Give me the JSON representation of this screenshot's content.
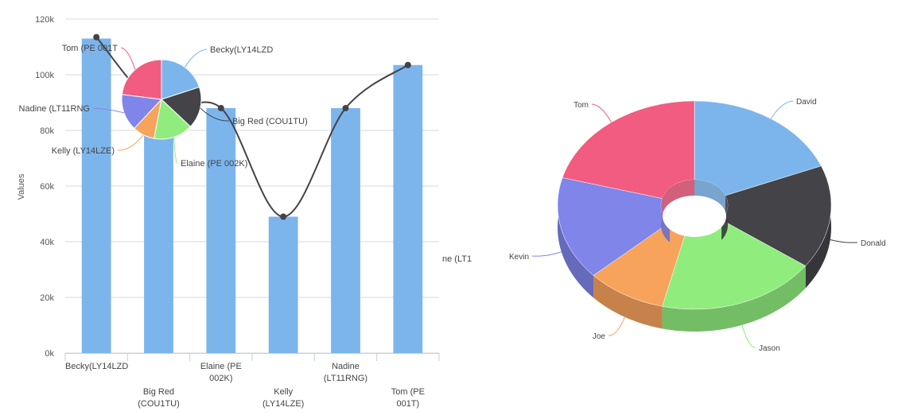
{
  "chart_data": [
    {
      "type": "bar",
      "ylabel": "Values",
      "ylim": [
        0,
        120000
      ],
      "y_ticks": [
        "0k",
        "20k",
        "40k",
        "60k",
        "80k",
        "100k",
        "120k"
      ],
      "categories": [
        "Becky(LY14LZD",
        "Big Red (COU1TU)",
        "Elaine (PE 002K)",
        "Kelly (LY14LZE)",
        "Nadine (LT11RNG)",
        "Tom (PE 001T)"
      ],
      "category_lines": [
        [
          "Becky(LY14LZD"
        ],
        [
          "Big Red",
          "(COU1TU)"
        ],
        [
          "Elaine (PE",
          "002K)"
        ],
        [
          "Kelly",
          "(LY14LZE)"
        ],
        [
          "Nadine",
          "(LT11RNG)"
        ],
        [
          "Tom (PE",
          "001T)"
        ]
      ],
      "series": [
        {
          "type": "bar",
          "color": "#7cb5ec",
          "values": [
            113000,
            79000,
            88000,
            49000,
            88000,
            103500
          ]
        },
        {
          "type": "spline",
          "color": "#434348",
          "values": [
            113500,
            88000,
            88000,
            49000,
            88000,
            103500
          ]
        }
      ],
      "grid": true,
      "clipped_label": "ne (LT1"
    },
    {
      "type": "pie",
      "overlay": "inset",
      "labels": [
        "Becky(LY14LZD",
        "Big Red (COU1TU)",
        "Elaine (PE 002K)",
        "Kelly (LY14LZE)",
        "Nadine (LT11RNG)",
        "Tom (PE 001T)"
      ],
      "display_labels": [
        "Becky(LY14LZD",
        "Big Red (COU1TU)",
        "Elaine (PE 002K)",
        "Kelly (LY14LZE)",
        "Nadine (LT11RNG",
        "Tom (PE 001T"
      ],
      "values": [
        20,
        17,
        16,
        9,
        15,
        23
      ],
      "colors": [
        "#7cb5ec",
        "#434348",
        "#90ed7d",
        "#f7a35c",
        "#8085e9",
        "#f15c80"
      ]
    },
    {
      "type": "pie",
      "style": "3d-donut",
      "labels": [
        "David",
        "Donald",
        "Jason",
        "Joe",
        "Kevin",
        "Tom"
      ],
      "values": [
        20,
        17,
        20,
        10,
        17,
        22
      ],
      "colors": [
        "#7cb5ec",
        "#434348",
        "#90ed7d",
        "#f7a35c",
        "#8085e9",
        "#f15c80"
      ]
    }
  ]
}
